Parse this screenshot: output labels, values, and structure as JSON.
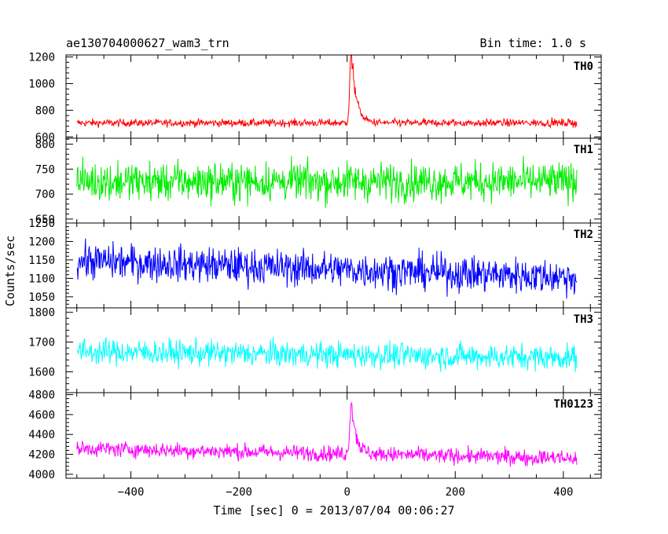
{
  "header": {
    "title": "ae130704000627_wam3_trn",
    "bin_time": "Bin time: 1.0 s"
  },
  "chart_data": {
    "type": "line",
    "xlabel": "Time [sec] 0 = 2013/07/04 00:06:27",
    "ylabel": "Counts/sec",
    "xlim": [
      -520,
      470
    ],
    "x_ticks": [
      -400,
      -200,
      0,
      200,
      400
    ],
    "x_tick_labels": [
      "−400",
      "−200",
      "0",
      "200",
      "400"
    ],
    "x_data_range": [
      -500,
      425
    ],
    "burst_peak_time": 8,
    "panels": [
      {
        "label": "TH0",
        "color": "#ff0000",
        "ylim": [
          590,
          1215
        ],
        "y_ticks": [
          600,
          800,
          1000,
          1200
        ],
        "y_tick_labels": [
          "600",
          "800",
          "1000",
          "1200"
        ],
        "baseline": 705,
        "noise": 20,
        "trend": 0,
        "burst_peak": 520
      },
      {
        "label": "TH1",
        "color": "#00ee00",
        "ylim": [
          642,
          812
        ],
        "y_ticks": [
          650,
          700,
          750,
          800
        ],
        "y_tick_labels": [
          "650",
          "700",
          "750",
          "800"
        ],
        "baseline": 725,
        "noise": 27,
        "trend": 0,
        "burst_peak": 0
      },
      {
        "label": "TH2",
        "color": "#0000ff",
        "ylim": [
          1020,
          1250
        ],
        "y_ticks": [
          1050,
          1100,
          1150,
          1200,
          1250
        ],
        "y_tick_labels": [
          "1050",
          "1100",
          "1150",
          "1200",
          "1250"
        ],
        "baseline": 1148,
        "noise": 34,
        "trend": -45,
        "burst_peak": 0
      },
      {
        "label": "TH3",
        "color": "#00ffff",
        "ylim": [
          1530,
          1815
        ],
        "y_ticks": [
          1600,
          1700,
          1800
        ],
        "y_tick_labels": [
          "1600",
          "1700",
          "1800"
        ],
        "baseline": 1668,
        "noise": 30,
        "trend": -20,
        "burst_peak": 0
      },
      {
        "label": "TH0123",
        "color": "#ff00ff",
        "ylim": [
          3960,
          4820
        ],
        "y_ticks": [
          4000,
          4200,
          4400,
          4600,
          4800
        ],
        "y_tick_labels": [
          "4000",
          "4200",
          "4400",
          "4600",
          "4800"
        ],
        "baseline": 4260,
        "noise": 55,
        "trend": -100,
        "burst_peak": 520
      }
    ]
  }
}
